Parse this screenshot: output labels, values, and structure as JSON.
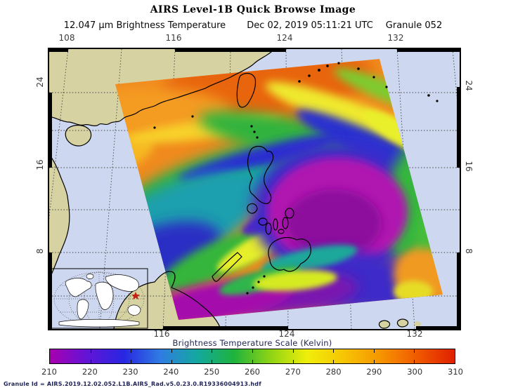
{
  "title": "AIRS Level-1B Quick Browse Image",
  "subtitle": {
    "product": "12.047 μm Brightness Temperature",
    "datetime": "Dec 02, 2019 05:11:21 UTC",
    "granule": "Granule 052"
  },
  "map": {
    "top_lon_ticks": [
      "108",
      "116",
      "124",
      "132"
    ],
    "bottom_lon_ticks": [
      "116",
      "124",
      "132"
    ],
    "left_lat_ticks": [
      "24",
      "16",
      "8"
    ],
    "right_lat_ticks": [
      "24",
      "16",
      "8"
    ],
    "ocean_color": "#cdd7ef",
    "land_color": "#d6d2a2",
    "coastline_color": "#000000",
    "swath_base_color": "#f08a1e",
    "storm_core_color": "#a90fae",
    "inset_marker_color": "#c41f12"
  },
  "colorbar": {
    "label": "Brightness Temperature Scale (Kelvin)",
    "ticks": [
      "210",
      "220",
      "230",
      "240",
      "250",
      "260",
      "270",
      "280",
      "290",
      "300",
      "310"
    ],
    "gradient": [
      "#a800b0",
      "#6314d6",
      "#2826e2",
      "#2f7ce2",
      "#14a8a0",
      "#1eb33c",
      "#8fd414",
      "#f0ee0a",
      "#f6c404",
      "#f69400",
      "#f05800",
      "#e02000"
    ]
  },
  "footer": "Granule Id = AIRS.2019.12.02.052.L1B.AIRS_Rad.v5.0.23.0.R19336004913.hdf"
}
